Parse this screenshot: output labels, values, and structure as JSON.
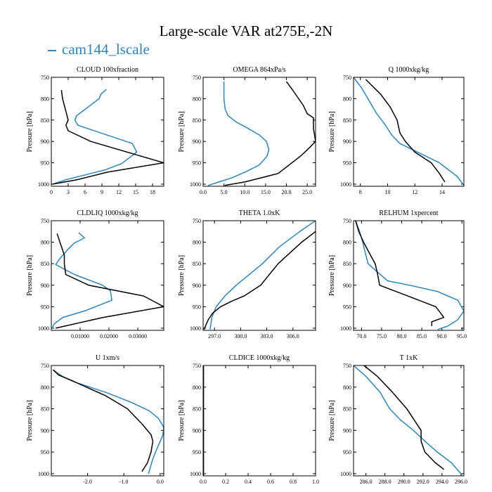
{
  "title": "Large-scale VAR at275E,-2N",
  "legend": {
    "label": "cam144_lscale",
    "color": "#2b86c0"
  },
  "colors": {
    "model": "#2b86c0",
    "obs": "#000000"
  },
  "chart_data": [
    {
      "type": "line",
      "title": "CLOUD  100xfraction",
      "ylabel": "Pressure [hPa]",
      "xlim": [
        0,
        20
      ],
      "ylim": [
        750,
        1005
      ],
      "xticks": [
        0,
        3,
        6,
        9,
        12,
        15,
        18
      ],
      "xticklabels": [
        "0",
        "3",
        "6",
        "9",
        "12",
        "15",
        "18"
      ],
      "yticks": [
        750,
        800,
        850,
        900,
        950,
        1000
      ],
      "yticklabels": [
        "750",
        "800",
        "850",
        "900",
        "950",
        "1000"
      ],
      "series": [
        {
          "name": "cam144_lscale",
          "color": "#2b86c0",
          "x": [
            9.8,
            8.8,
            8.5,
            6,
            4.5,
            4.2,
            4.7,
            14.4,
            15.2,
            12.5,
            9.5,
            2.5,
            0.3
          ],
          "y": [
            778,
            790,
            800,
            825,
            840,
            850,
            862,
            905,
            925,
            952,
            967,
            990,
            1000
          ]
        },
        {
          "name": "black",
          "color": "#000000",
          "x": [
            1.8,
            2,
            2.6,
            3,
            2.6,
            3,
            7,
            20,
            10,
            4.5,
            0.2
          ],
          "y": [
            780,
            800,
            830,
            850,
            862,
            875,
            900,
            950,
            972,
            990,
            1000
          ]
        }
      ]
    },
    {
      "type": "line",
      "title": "OMEGA  864xPa/s",
      "ylabel": "Pressure [hPa]",
      "xlim": [
        0,
        27
      ],
      "ylim": [
        750,
        1005
      ],
      "xticks": [
        0,
        5,
        10,
        15,
        20,
        25
      ],
      "xticklabels": [
        "0.0",
        "5.0",
        "10.0",
        "15.0",
        "20.0",
        "25.0"
      ],
      "yticks": [
        750,
        800,
        850,
        900,
        950,
        1000
      ],
      "yticklabels": [
        "750",
        "800",
        "850",
        "900",
        "950",
        "1000"
      ],
      "series": [
        {
          "name": "cam144_lscale",
          "color": "#2b86c0",
          "x": [
            5,
            5,
            5.3,
            6,
            8,
            10.5,
            13.5,
            15.2,
            15.8,
            15.3,
            13.5,
            10.5,
            7,
            3.8,
            1.2
          ],
          "y": [
            760,
            800,
            825,
            840,
            855,
            868,
            885,
            900,
            920,
            935,
            955,
            970,
            985,
            995,
            1003
          ]
        },
        {
          "name": "black",
          "color": "#000000",
          "x": [
            20,
            21.5,
            24,
            25,
            26.5,
            26.5,
            27,
            25,
            23.3,
            18,
            10,
            5.2
          ],
          "y": [
            760,
            780,
            815,
            835,
            845,
            870,
            900,
            920,
            935,
            975,
            995,
            1003
          ]
        }
      ]
    },
    {
      "type": "line",
      "title": "Q  1000xkg/kg",
      "ylabel": "Pressure [hPa]",
      "xlim": [
        7.5,
        15.6
      ],
      "ylim": [
        750,
        1005
      ],
      "xticks": [
        8,
        10,
        12,
        14
      ],
      "xticklabels": [
        "8",
        "10",
        "12",
        "14"
      ],
      "yticks": [
        750,
        800,
        850,
        900,
        950,
        1000
      ],
      "yticklabels": [
        "750",
        "800",
        "850",
        "900",
        "950",
        "1000"
      ],
      "series": [
        {
          "name": "cam144_lscale",
          "color": "#2b86c0",
          "x": [
            7.5,
            8.1,
            8.7,
            9.2,
            9.8,
            10.3,
            10.9,
            12.2,
            13.8,
            15.1,
            15.6
          ],
          "y": [
            750,
            775,
            808,
            835,
            860,
            885,
            905,
            925,
            950,
            982,
            1003
          ]
        },
        {
          "name": "black",
          "color": "#000000",
          "x": [
            8.4,
            9.5,
            10.2,
            10.7,
            10.9,
            11.3,
            12,
            13.2,
            13.8,
            14.2
          ],
          "y": [
            755,
            790,
            820,
            850,
            880,
            900,
            925,
            950,
            975,
            995
          ]
        }
      ]
    },
    {
      "type": "line",
      "title": "CLDLIQ  1000xkg/kg",
      "ylabel": "Pressure [hPa]",
      "xlim": [
        0,
        0.039
      ],
      "ylim": [
        750,
        1005
      ],
      "xticks": [
        0.01,
        0.02,
        0.03
      ],
      "xticklabels": [
        "0.01000",
        "0.02000",
        "0.03000"
      ],
      "yticks": [
        750,
        800,
        850,
        900,
        950,
        1000
      ],
      "yticklabels": [
        "750",
        "800",
        "850",
        "900",
        "950",
        "1000"
      ],
      "series": [
        {
          "name": "cam144_lscale",
          "color": "#2b86c0",
          "x": [
            0.0095,
            0.0115,
            0.008,
            0.006,
            0.003,
            0.0015,
            0.008,
            0.0178,
            0.0205,
            0.021,
            0.0115,
            0.004,
            0.001,
            0.0003
          ],
          "y": [
            778,
            790,
            802,
            815,
            838,
            852,
            875,
            900,
            913,
            935,
            960,
            975,
            990,
            1000
          ]
        },
        {
          "name": "black",
          "color": "#000000",
          "x": [
            0.002,
            0.003,
            0.0045,
            0.0045,
            0.005,
            0.013,
            0.032,
            0.039,
            0.018,
            0.0015
          ],
          "y": [
            780,
            800,
            830,
            850,
            875,
            900,
            925,
            950,
            975,
            1000
          ]
        }
      ]
    },
    {
      "type": "line",
      "title": "THETA  1.0xK",
      "ylabel": "Pressure [hPa]",
      "xlim": [
        295.7,
        308.6
      ],
      "ylim": [
        750,
        1005
      ],
      "xticks": [
        297,
        300,
        303,
        306
      ],
      "xticklabels": [
        "297.0",
        "300.0",
        "303.0",
        "306.0"
      ],
      "yticks": [
        750,
        800,
        850,
        900,
        950,
        1000
      ],
      "yticklabels": [
        "750",
        "800",
        "850",
        "900",
        "950",
        "1000"
      ],
      "series": [
        {
          "name": "cam144_lscale",
          "color": "#2b86c0",
          "x": [
            308.6,
            306.8,
            304.5,
            302.5,
            299.5,
            298.2,
            297.2,
            296.7,
            296.5
          ],
          "y": [
            750,
            775,
            810,
            850,
            900,
            925,
            950,
            975,
            1003
          ]
        },
        {
          "name": "black",
          "color": "#000000",
          "x": [
            308.6,
            307,
            304.3,
            302.3,
            300.4,
            299,
            297.7,
            296.8,
            296.3,
            295.8
          ],
          "y": [
            775,
            800,
            850,
            900,
            925,
            937,
            950,
            965,
            980,
            1003
          ]
        }
      ]
    },
    {
      "type": "line",
      "title": "RELHUM  1xpercent",
      "ylabel": "Pressure [hPa]",
      "xlim": [
        68,
        95.5
      ],
      "ylim": [
        750,
        1005
      ],
      "xticks": [
        70,
        75,
        80,
        85,
        90,
        95
      ],
      "xticklabels": [
        "70.0",
        "75.0",
        "80.0",
        "85.0",
        "90.0",
        "95.0"
      ],
      "yticks": [
        750,
        800,
        850,
        900,
        950,
        1000
      ],
      "yticklabels": [
        "750",
        "800",
        "850",
        "900",
        "950",
        "1000"
      ],
      "series": [
        {
          "name": "cam144_lscale",
          "color": "#2b86c0",
          "x": [
            68.5,
            69.5,
            70.3,
            70.8,
            71.6,
            76.5,
            82,
            89,
            94,
            95.5,
            94,
            91.5,
            89
          ],
          "y": [
            750,
            775,
            800,
            820,
            850,
            890,
            900,
            915,
            935,
            960,
            980,
            995,
            1003
          ]
        },
        {
          "name": "black",
          "color": "#000000",
          "x": [
            68.5,
            69.3,
            70.5,
            72.2,
            73.4,
            74,
            74.5,
            81.5,
            88.5,
            90.5,
            87.5,
            87.5
          ],
          "y": [
            750,
            775,
            800,
            830,
            850,
            875,
            900,
            925,
            950,
            975,
            985,
            995
          ]
        }
      ]
    },
    {
      "type": "line",
      "title": "U  1xm/s",
      "ylabel": "Pressure [hPa]",
      "xlim": [
        -3.0,
        0.1
      ],
      "ylim": [
        750,
        1005
      ],
      "xticks": [
        -2,
        -1,
        0
      ],
      "xticklabels": [
        "-2.0",
        "-1.0",
        "0.0"
      ],
      "yticks": [
        750,
        800,
        850,
        900,
        950,
        1000
      ],
      "yticklabels": [
        "750",
        "800",
        "850",
        "900",
        "950",
        "1000"
      ],
      "series": [
        {
          "name": "cam144_lscale",
          "color": "#2b86c0",
          "x": [
            -2.95,
            -2.7,
            -2.3,
            -1.5,
            -0.8,
            -0.3,
            -0.05,
            0.1,
            0.07,
            -0.05,
            -0.2,
            -0.32
          ],
          "y": [
            760,
            775,
            790,
            812,
            835,
            855,
            872,
            893,
            912,
            935,
            965,
            1000
          ]
        },
        {
          "name": "black",
          "color": "#000000",
          "x": [
            -2.95,
            -2.8,
            -2.3,
            -1.5,
            -0.9,
            -0.5,
            -0.25,
            -0.2,
            -0.25,
            -0.35,
            -0.5
          ],
          "y": [
            760,
            772,
            790,
            820,
            850,
            885,
            910,
            925,
            950,
            975,
            995
          ]
        }
      ]
    },
    {
      "type": "line",
      "title": "CLDICE  1000xkg/kg",
      "ylabel": "Pressure [hPa]",
      "xlim": [
        0,
        1
      ],
      "ylim": [
        750,
        1005
      ],
      "xticks": [
        0,
        0.2,
        0.4,
        0.6,
        0.8,
        1.0
      ],
      "xticklabels": [
        "0.0",
        "0.2",
        "0.4",
        "0.6",
        "0.8",
        "1.0"
      ],
      "yticks": [
        750,
        800,
        850,
        900,
        950,
        1000
      ],
      "yticklabels": [
        "750",
        "800",
        "850",
        "900",
        "950",
        "1000"
      ],
      "series": [
        {
          "name": "cam144_lscale",
          "color": "#2b86c0",
          "x": [
            0.003,
            0.003
          ],
          "y": [
            750,
            1005
          ]
        },
        {
          "name": "black",
          "color": "#000000",
          "x": [
            0.003,
            0.003
          ],
          "y": [
            750,
            1005
          ]
        }
      ]
    },
    {
      "type": "line",
      "title": "T  1xK",
      "ylabel": "Pressure [hPa]",
      "xlim": [
        284.7,
        296.3
      ],
      "ylim": [
        750,
        1005
      ],
      "xticks": [
        286,
        288,
        290,
        292,
        294,
        296
      ],
      "xticklabels": [
        "286.0",
        "288.0",
        "290.0",
        "292.0",
        "294.0",
        "296.0"
      ],
      "yticks": [
        750,
        800,
        850,
        900,
        950,
        1000
      ],
      "yticklabels": [
        "750",
        "800",
        "850",
        "900",
        "950",
        "1000"
      ],
      "series": [
        {
          "name": "cam144_lscale",
          "color": "#2b86c0",
          "x": [
            284.7,
            286,
            287.5,
            288.5,
            289.6,
            291,
            292.2,
            293.5,
            295,
            296.1
          ],
          "y": [
            750,
            775,
            812,
            850,
            875,
            900,
            925,
            950,
            975,
            1003
          ]
        },
        {
          "name": "black",
          "color": "#000000",
          "x": [
            285.8,
            287.2,
            288.8,
            290.3,
            291.8,
            291.8,
            292.2,
            293.3,
            294.2
          ],
          "y": [
            750,
            775,
            812,
            850,
            900,
            925,
            950,
            975,
            990
          ]
        }
      ]
    }
  ]
}
